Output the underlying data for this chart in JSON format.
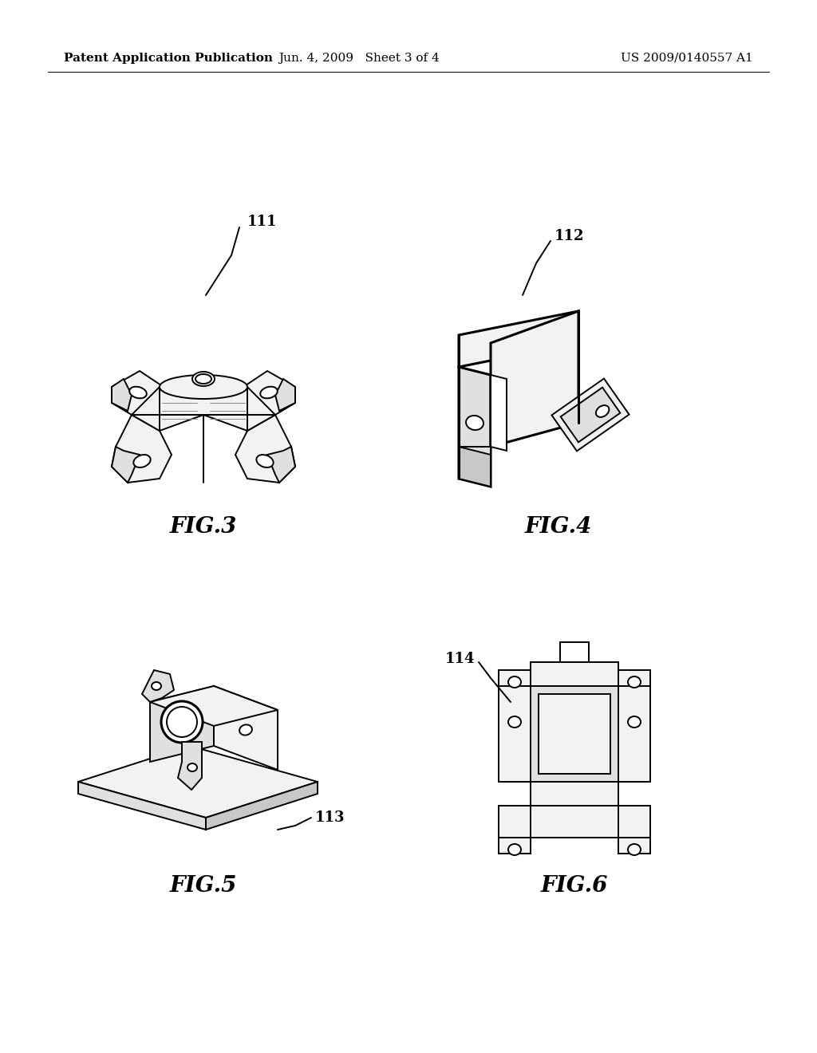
{
  "background_color": "#ffffff",
  "header_left": "Patent Application Publication",
  "header_center": "Jun. 4, 2009   Sheet 3 of 4",
  "header_right": "US 2009/0140557 A1",
  "header_fontsize": 11,
  "fig3_label": "FIG.3",
  "fig4_label": "FIG.4",
  "fig5_label": "FIG.5",
  "fig6_label": "FIG.6",
  "ref111": "111",
  "ref112": "112",
  "ref113": "113",
  "ref114": "114",
  "fig_label_fontsize": 20,
  "ref_fontsize": 13,
  "lw": 1.4,
  "lw_thick": 2.2
}
